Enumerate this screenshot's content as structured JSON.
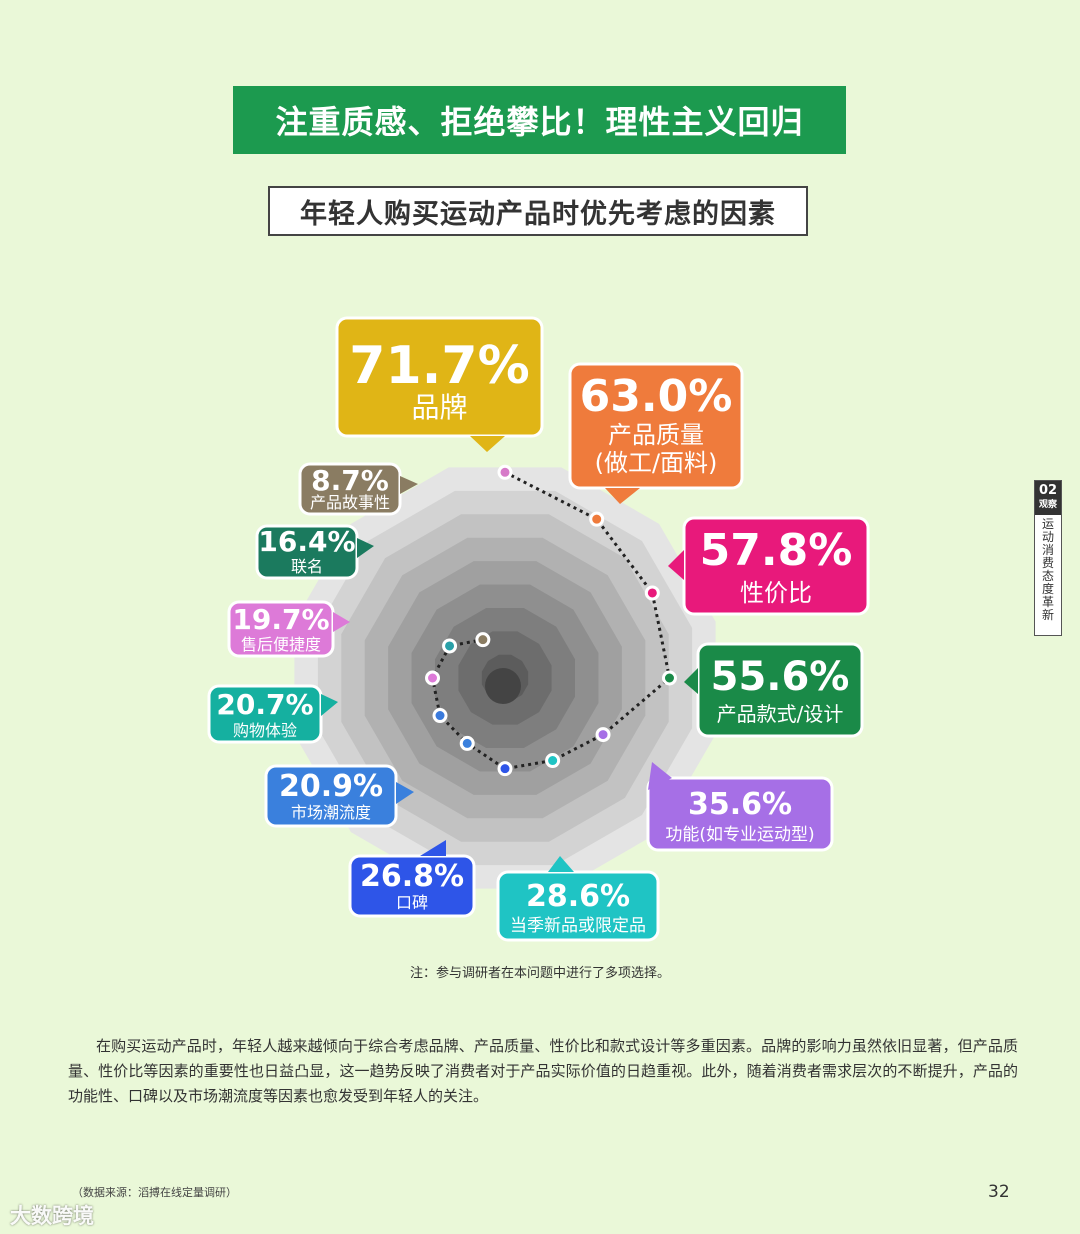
{
  "header": {
    "banner": "注重质感、拒绝攀比！理性主义回归",
    "subtitle": "年轻人购买运动产品时优先考虑的因素"
  },
  "side_tab": {
    "number": "02",
    "label": "观察",
    "text": "运动消费态度革新"
  },
  "chart_data": {
    "type": "radar",
    "title": "年轻人购买运动产品时优先考虑的因素",
    "unit": "%",
    "categories": [
      "品牌",
      "产品质量(做工/面料)",
      "性价比",
      "产品款式/设计",
      "功能(如专业运动型)",
      "当季新品或限定品",
      "口碑",
      "市场潮流度",
      "购物体验",
      "售后便捷度",
      "联名",
      "产品故事性"
    ],
    "values": [
      71.7,
      63.0,
      57.8,
      55.6,
      35.6,
      28.6,
      26.8,
      20.9,
      20.7,
      19.7,
      16.4,
      8.7
    ],
    "labels_pct": [
      "71.7%",
      "63.0%",
      "57.8%",
      "55.6%",
      "35.6%",
      "28.6%",
      "26.8%",
      "20.9%",
      "20.7%",
      "19.7%",
      "16.4%",
      "8.7%"
    ],
    "labels_text": [
      [
        "品牌"
      ],
      [
        "产品质量",
        "(做工/面料)"
      ],
      [
        "性价比"
      ],
      [
        "产品款式/设计"
      ],
      [
        "功能(如专业运动型)"
      ],
      [
        "当季新品或限定品"
      ],
      [
        "口碑"
      ],
      [
        "市场潮流度"
      ],
      [
        "购物体验"
      ],
      [
        "售后便捷度"
      ],
      [
        "联名"
      ],
      [
        "产品故事性"
      ]
    ],
    "colors": [
      "#e0b516",
      "#ef7b3c",
      "#e8197b",
      "#1a8a48",
      "#a66fe6",
      "#1fc4c4",
      "#2e55e8",
      "#3a80dd",
      "#15b0a0",
      "#dd7ad8",
      "#1b7a5e",
      "#8a7c62"
    ],
    "dot_colors": [
      "#d67ac8",
      "#ef7b3c",
      "#e8197b",
      "#1a8a48",
      "#a66fe6",
      "#1fc4c4",
      "#2e55e8",
      "#3a80dd",
      "#3a7adc",
      "#dd7ad8",
      "#2aa0a8",
      "#8a7c62"
    ]
  },
  "note": "注：参与调研者在本问题中进行了多项选择。",
  "body_text": "在购买运动产品时，年轻人越来越倾向于综合考虑品牌、产品质量、性价比和款式设计等多重因素。品牌的影响力虽然依旧显著，但产品质量、性价比等因素的重要性也日益凸显，这一趋势反映了消费者对于产品实际价值的日趋重视。此外，随着消费者需求层次的不断提升，产品的功能性、口碑以及市场潮流度等因素也愈发受到年轻人的关注。",
  "source": "（数据来源：滔搏在线定量调研）",
  "page_number": "32",
  "watermark": "大数跨境"
}
